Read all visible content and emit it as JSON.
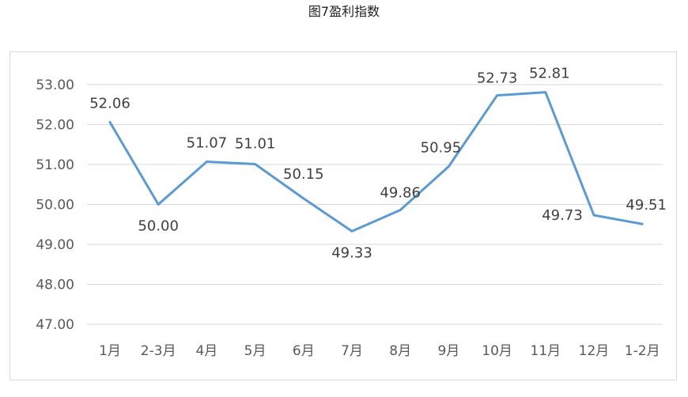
{
  "title": "图7盈利指数",
  "chart_data": {
    "type": "line",
    "title": "图7盈利指数",
    "xlabel": "",
    "ylabel": "",
    "categories": [
      "1月",
      "2-3月",
      "4月",
      "5月",
      "6月",
      "7月",
      "8月",
      "9月",
      "10月",
      "11月",
      "12月",
      "1-2月"
    ],
    "series": [
      {
        "values": [
          52.06,
          50.0,
          51.07,
          51.01,
          50.15,
          49.33,
          49.86,
          50.95,
          52.73,
          52.81,
          49.73,
          49.51
        ],
        "color": "#5b9bd5"
      }
    ],
    "data_labels": [
      "52.06",
      "50.00",
      "51.07",
      "51.01",
      "50.15",
      "49.33",
      "49.86",
      "50.95",
      "52.73",
      "52.81",
      "49.73",
      "49.51"
    ],
    "y_ticks": [
      "47.00",
      "48.00",
      "49.00",
      "50.00",
      "51.00",
      "52.00",
      "53.00"
    ],
    "ylim": [
      47,
      53
    ],
    "grid": true,
    "legend": "none"
  }
}
